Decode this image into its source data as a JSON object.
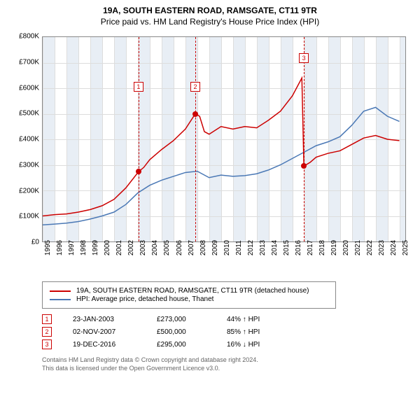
{
  "title": "19A, SOUTH EASTERN ROAD, RAMSGATE, CT11 9TR",
  "subtitle": "Price paid vs. HM Land Registry's House Price Index (HPI)",
  "chart": {
    "type": "line",
    "colors": {
      "price_paid": "#cc0000",
      "hpi": "#4a78b5",
      "grid": "#dddddd",
      "border": "#888888",
      "band": "#e8eef5",
      "bg": "#ffffff"
    },
    "ylim": [
      0,
      800
    ],
    "ytick_step": 100,
    "ylabel_prefix": "£",
    "ylabel_suffix": "K",
    "xrange": [
      1995,
      2025.5
    ],
    "xticks": [
      1995,
      1996,
      1997,
      1998,
      1999,
      2000,
      2001,
      2002,
      2003,
      2004,
      2005,
      2006,
      2007,
      2008,
      2009,
      2010,
      2011,
      2012,
      2013,
      2014,
      2015,
      2016,
      2017,
      2018,
      2019,
      2020,
      2021,
      2022,
      2023,
      2024,
      2025
    ],
    "bands": [
      [
        1995,
        1996
      ],
      [
        1997,
        1998
      ],
      [
        1999,
        2000
      ],
      [
        2001,
        2002
      ],
      [
        2003,
        2004
      ],
      [
        2005,
        2006
      ],
      [
        2007,
        2008
      ],
      [
        2009,
        2010
      ],
      [
        2011,
        2012
      ],
      [
        2013,
        2014
      ],
      [
        2015,
        2016
      ],
      [
        2017,
        2018
      ],
      [
        2019,
        2020
      ],
      [
        2021,
        2022
      ],
      [
        2023,
        2024
      ],
      [
        2025,
        2025.5
      ]
    ],
    "line_width": 1.5,
    "series": {
      "price_paid": [
        [
          1995,
          100
        ],
        [
          1996,
          105
        ],
        [
          1997,
          108
        ],
        [
          1998,
          115
        ],
        [
          1999,
          125
        ],
        [
          2000,
          140
        ],
        [
          2001,
          165
        ],
        [
          2002,
          210
        ],
        [
          2003.06,
          273
        ],
        [
          2003.5,
          290
        ],
        [
          2004,
          320
        ],
        [
          2005,
          360
        ],
        [
          2006,
          395
        ],
        [
          2007,
          440
        ],
        [
          2007.84,
          500
        ],
        [
          2008.2,
          490
        ],
        [
          2008.6,
          430
        ],
        [
          2009,
          420
        ],
        [
          2010,
          450
        ],
        [
          2011,
          440
        ],
        [
          2012,
          450
        ],
        [
          2013,
          445
        ],
        [
          2014,
          475
        ],
        [
          2015,
          510
        ],
        [
          2016,
          570
        ],
        [
          2016.8,
          640
        ],
        [
          2016.97,
          295
        ],
        [
          2017.5,
          310
        ],
        [
          2018,
          330
        ],
        [
          2019,
          345
        ],
        [
          2020,
          355
        ],
        [
          2021,
          380
        ],
        [
          2022,
          405
        ],
        [
          2023,
          415
        ],
        [
          2024,
          400
        ],
        [
          2025,
          395
        ]
      ],
      "hpi": [
        [
          1995,
          65
        ],
        [
          1996,
          68
        ],
        [
          1997,
          72
        ],
        [
          1998,
          78
        ],
        [
          1999,
          88
        ],
        [
          2000,
          100
        ],
        [
          2001,
          115
        ],
        [
          2002,
          145
        ],
        [
          2003,
          190
        ],
        [
          2004,
          220
        ],
        [
          2005,
          240
        ],
        [
          2006,
          255
        ],
        [
          2007,
          270
        ],
        [
          2008,
          275
        ],
        [
          2009,
          250
        ],
        [
          2010,
          260
        ],
        [
          2011,
          255
        ],
        [
          2012,
          258
        ],
        [
          2013,
          265
        ],
        [
          2014,
          280
        ],
        [
          2015,
          300
        ],
        [
          2016,
          325
        ],
        [
          2017,
          350
        ],
        [
          2018,
          375
        ],
        [
          2019,
          390
        ],
        [
          2020,
          410
        ],
        [
          2021,
          455
        ],
        [
          2022,
          510
        ],
        [
          2023,
          525
        ],
        [
          2024,
          490
        ],
        [
          2025,
          470
        ]
      ]
    },
    "markers": [
      {
        "n": "1",
        "year": 2003.06,
        "price": 273,
        "box_top_pct": 22
      },
      {
        "n": "2",
        "year": 2007.84,
        "price": 500,
        "box_top_pct": 22
      },
      {
        "n": "3",
        "year": 2016.97,
        "price": 295,
        "box_top_pct": 8
      }
    ]
  },
  "legend": [
    {
      "color": "#cc0000",
      "label": "19A, SOUTH EASTERN ROAD, RAMSGATE, CT11 9TR (detached house)"
    },
    {
      "color": "#4a78b5",
      "label": "HPI: Average price, detached house, Thanet"
    }
  ],
  "transactions": [
    {
      "n": "1",
      "date": "23-JAN-2003",
      "price": "£273,000",
      "delta": "44% ↑ HPI"
    },
    {
      "n": "2",
      "date": "02-NOV-2007",
      "price": "£500,000",
      "delta": "85% ↑ HPI"
    },
    {
      "n": "3",
      "date": "19-DEC-2016",
      "price": "£295,000",
      "delta": "16% ↓ HPI"
    }
  ],
  "footnote1": "Contains HM Land Registry data © Crown copyright and database right 2024.",
  "footnote2": "This data is licensed under the Open Government Licence v3.0."
}
